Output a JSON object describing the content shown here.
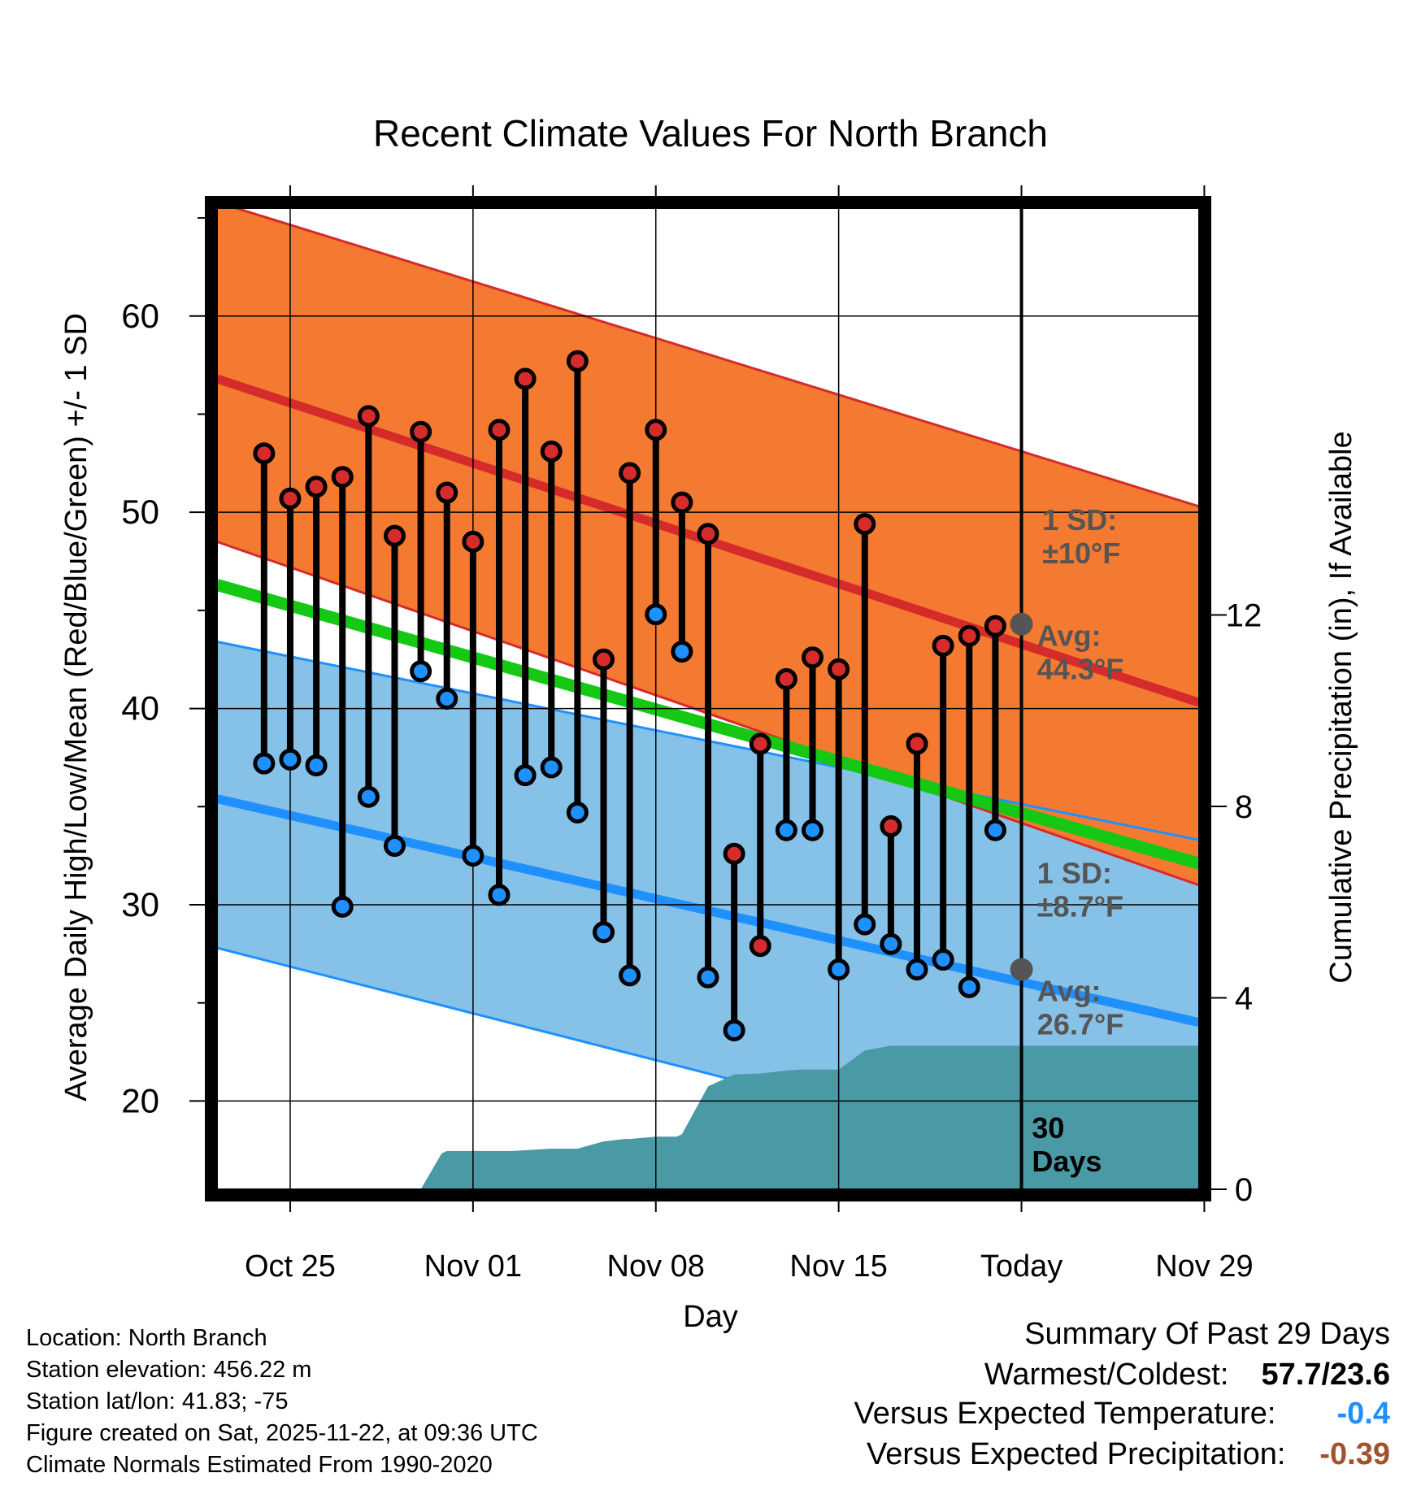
{
  "chart_data": {
    "type": "line",
    "title": "Recent Climate Values For North Branch",
    "xlabel": "Day",
    "ylabel": "Average Daily High/Low/Mean (Red/Blue/Green) +/- 1 SD",
    "y2label": "Cumulative Precipitation (in), If Available",
    "xlim": [
      -2.8,
      34.8
    ],
    "ylim": [
      15.5,
      65.5
    ],
    "y2lim": [
      0,
      20.5
    ],
    "x_ticks": [
      {
        "x": 0,
        "label": "Oct 25"
      },
      {
        "x": 7,
        "label": "Nov 01"
      },
      {
        "x": 14,
        "label": "Nov 08"
      },
      {
        "x": 21,
        "label": "Nov 15"
      },
      {
        "x": 28,
        "label": "Today"
      },
      {
        "x": 35,
        "label": "Nov 29"
      }
    ],
    "y_ticks": [
      20,
      30,
      40,
      50,
      60
    ],
    "y2_ticks": [
      0,
      4,
      8,
      12
    ],
    "today_x": 28,
    "normals": {
      "x": [
        -2.8,
        34.8
      ],
      "high_mean": [
        56.8,
        40.3
      ],
      "high_upper": [
        65.8,
        50.3
      ],
      "high_lower": [
        48.5,
        31.0
      ],
      "low_mean": [
        35.4,
        24.0
      ],
      "low_upper": [
        43.4,
        33.3
      ],
      "low_lower": [
        27.8,
        15.0
      ],
      "mean": [
        46.3,
        32.1
      ]
    },
    "observations": {
      "day": [
        -1,
        0,
        1,
        2,
        3,
        4,
        5,
        6,
        7,
        8,
        9,
        10,
        11,
        12,
        13,
        14,
        15,
        16,
        17,
        18,
        19,
        20,
        21,
        22,
        23,
        24,
        25,
        26,
        27
      ],
      "high": [
        53.0,
        50.7,
        51.3,
        51.8,
        54.9,
        48.8,
        54.1,
        51.0,
        48.5,
        54.2,
        56.8,
        53.1,
        57.7,
        42.5,
        52.0,
        54.2,
        50.5,
        48.9,
        32.6,
        38.2,
        41.5,
        42.6,
        42.0,
        49.4,
        34.0,
        38.2,
        43.2,
        43.7,
        44.2
      ],
      "low": [
        37.2,
        37.4,
        37.1,
        29.9,
        35.5,
        33.0,
        41.9,
        40.5,
        32.5,
        30.5,
        36.6,
        37.0,
        34.7,
        28.6,
        26.4,
        44.8,
        42.9,
        26.3,
        23.6,
        27.9,
        33.8,
        33.8,
        26.7,
        29.0,
        28.0,
        26.7,
        27.2,
        25.8,
        33.8
      ]
    },
    "precipitation": {
      "x": [
        1.0,
        1.75,
        2.0,
        3.0,
        4.0,
        5.0,
        5.8,
        6.0,
        7.0,
        8.0,
        8.5,
        10.0,
        11.0,
        12.0,
        12.8,
        13.0,
        14.0,
        14.8,
        15.0,
        16.0,
        17.0,
        18.0,
        19.0,
        19.5,
        20.0,
        21.0,
        22.0,
        23.0,
        25.0,
        28.0,
        31.0,
        34.8
      ],
      "cum": [
        0.0,
        0.0,
        0.0,
        0.0,
        0.0,
        0.0,
        0.75,
        0.8,
        0.8,
        0.8,
        0.8,
        0.85,
        0.85,
        1.0,
        1.05,
        1.05,
        1.1,
        1.1,
        1.15,
        2.15,
        2.4,
        2.42,
        2.48,
        2.5,
        2.5,
        2.5,
        2.9,
        3.0,
        3.0,
        3.0,
        3.0,
        3.0
      ]
    },
    "annotations": [
      {
        "lines": [
          "1 SD:",
          "±10°F"
        ],
        "x": 28.8,
        "y": 49.1
      },
      {
        "lines": [
          "Avg:",
          "44.3°F"
        ],
        "x": 28.6,
        "y": 43.2
      },
      {
        "lines": [
          "1 SD:",
          "±8.7°F"
        ],
        "x": 28.6,
        "y": 31.1
      },
      {
        "lines": [
          "Avg:",
          "26.7°F"
        ],
        "x": 28.6,
        "y": 25.1
      },
      {
        "lines": [
          "30",
          "Days"
        ],
        "x": 28.4,
        "y": 18.1
      }
    ],
    "today_markers": [
      44.3,
      26.7
    ]
  },
  "footer": {
    "lines": [
      "Location: North Branch",
      "Station elevation: 456.22 m",
      "Station lat/lon: 41.83; -75",
      "Figure created on Sat, 2025-11-22, at 09:36 UTC",
      "Climate Normals Estimated From 1990-2020"
    ]
  },
  "summary": {
    "title": "Summary Of Past 29 Days",
    "warmest_label": "Warmest/Coldest:",
    "warmest_value": "57.7/23.6",
    "temp_label": "Versus Expected Temperature:",
    "temp_value": "-0.4",
    "precip_label": "Versus Expected Precipitation:",
    "precip_value": "-0.39"
  },
  "colors": {
    "high_band": "#f57a31",
    "low_band": "#86c1e7",
    "high_line": "#d52b2b",
    "low_line": "#1e90ff",
    "mean_line": "#14c814",
    "precip": "#4a9aa5",
    "dark_red": "#9a1515",
    "temp_value": "#1e90ff",
    "precip_value": "#a0522d",
    "marker": "#555555",
    "annotation": "#555555"
  }
}
